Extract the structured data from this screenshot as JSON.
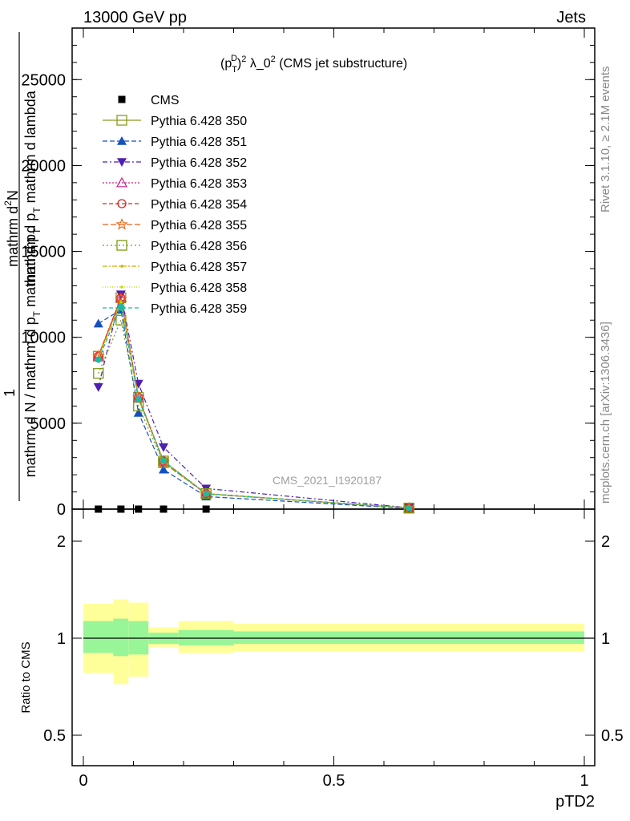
{
  "header": {
    "left": "13000 GeV pp",
    "right": "Jets"
  },
  "plot_title": {
    "main": "(p",
    "sub": "T",
    "sup": "D",
    "rest": ")",
    "exp": "2",
    "tail": " λ_0",
    "exp2": "2",
    "suffix": " (CMS jet substructure)"
  },
  "side_labels": {
    "rivet": "Rivet 3.1.10, ≥ 2.1M events",
    "mcplots": "mcplots.cern.ch [arXiv:1306.3436]"
  },
  "watermark": "CMS_2021_I1920187",
  "ylabel_main_lines": [
    "1",
    "mathrm d N / mathrm d p_T mathrm d p_T",
    "mathrm d^2N",
    "mathrm d p_T mathrm d lambda"
  ],
  "ylabel_fraction": {
    "num_top": "mathrm d",
    "num_sup": "2",
    "num_rest": "N",
    "num_den": "mathrm d p",
    "num_den_sub": "T",
    "num_den_rest": " mathrm d lambda",
    "one": "1",
    "den": "mathrm d N / mathrm d p",
    "den_sub": "T",
    "den_rest": " mathrm d p",
    "den_sub2": "T"
  },
  "ylabel_ratio": "Ratio to CMS",
  "xlabel": "pTD2",
  "colors": {
    "band_inner": "#98f598",
    "band_outer": "#ffff99"
  },
  "chart_data": {
    "type": "line",
    "xlim": [
      0,
      1
    ],
    "ylim": [
      0,
      28000
    ],
    "ratio_ylim": [
      0.4,
      2.3
    ],
    "x_ticks": [
      {
        "value": 0,
        "label": "0"
      },
      {
        "value": 0.5,
        "label": "0.5"
      },
      {
        "value": 1,
        "label": "1"
      }
    ],
    "y_ticks": [
      {
        "value": 0,
        "label": "0"
      },
      {
        "value": 5000,
        "label": "5000"
      },
      {
        "value": 10000,
        "label": "10000"
      },
      {
        "value": 15000,
        "label": "15000"
      },
      {
        "value": 20000,
        "label": "20000"
      },
      {
        "value": 25000,
        "label": "25000"
      }
    ],
    "ratio_ticks": [
      {
        "value": 0.5,
        "label": "0.5"
      },
      {
        "value": 1,
        "label": "1"
      },
      {
        "value": 2,
        "label": "2"
      }
    ],
    "x": [
      0.03,
      0.075,
      0.11,
      0.16,
      0.245,
      0.65
    ],
    "series": [
      {
        "name": "CMS",
        "color": "#000000",
        "marker": "filled-square",
        "dash": "none",
        "values": [
          0,
          0,
          0,
          0,
          0,
          0
        ]
      },
      {
        "name": "Pythia 6.428 350",
        "color": "#8a9a1e",
        "marker": "open-square",
        "dash": "solid",
        "values": [
          8900,
          12300,
          6500,
          2800,
          900,
          60
        ]
      },
      {
        "name": "Pythia 6.428 351",
        "color": "#1550c0",
        "marker": "filled-triangle-up",
        "dash": "6,3",
        "values": [
          10800,
          11600,
          5600,
          2300,
          730,
          40
        ]
      },
      {
        "name": "Pythia 6.428 352",
        "color": "#5020b0",
        "marker": "filled-triangle-down",
        "dash": "6,3,2,3",
        "values": [
          7100,
          12500,
          7300,
          3600,
          1200,
          80
        ]
      },
      {
        "name": "Pythia 6.428 353",
        "color": "#cc2080",
        "marker": "open-triangle-up",
        "dash": "2,2",
        "values": [
          8900,
          12300,
          6500,
          2800,
          900,
          60
        ]
      },
      {
        "name": "Pythia 6.428 354",
        "color": "#dd2020",
        "marker": "open-circle",
        "dash": "5,3",
        "values": [
          8900,
          12300,
          6500,
          2800,
          900,
          60
        ]
      },
      {
        "name": "Pythia 6.428 355",
        "color": "#ee6010",
        "marker": "open-star",
        "dash": "7,3",
        "values": [
          8900,
          12200,
          6500,
          2700,
          880,
          60
        ]
      },
      {
        "name": "Pythia 6.428 356",
        "color": "#7a9a10",
        "marker": "open-square",
        "dash": "2,3",
        "values": [
          7900,
          11000,
          6000,
          2700,
          900,
          60
        ]
      },
      {
        "name": "Pythia 6.428 357",
        "color": "#d0b000",
        "marker": "small-dot",
        "dash": "6,2,2,2",
        "values": [
          8800,
          12100,
          6400,
          2800,
          900,
          60
        ]
      },
      {
        "name": "Pythia 6.428 358",
        "color": "#c0d800",
        "marker": "small-dot",
        "dash": "1,2",
        "values": [
          8800,
          12000,
          6400,
          2800,
          900,
          60
        ]
      },
      {
        "name": "Pythia 6.428 359",
        "color": "#20b8a0",
        "marker": "filled-circle",
        "dash": "5,3",
        "values": [
          8700,
          11800,
          6400,
          2800,
          900,
          60
        ]
      }
    ],
    "ratio_bands": [
      {
        "x0": 0.0,
        "x1": 0.06,
        "inner": [
          0.9,
          1.13
        ],
        "outer": [
          0.78,
          1.28
        ]
      },
      {
        "x0": 0.06,
        "x1": 0.09,
        "inner": [
          0.88,
          1.15
        ],
        "outer": [
          0.72,
          1.32
        ]
      },
      {
        "x0": 0.09,
        "x1": 0.13,
        "inner": [
          0.89,
          1.13
        ],
        "outer": [
          0.76,
          1.29
        ]
      },
      {
        "x0": 0.13,
        "x1": 0.19,
        "inner": [
          0.96,
          1.04
        ],
        "outer": [
          0.94,
          1.08
        ]
      },
      {
        "x0": 0.19,
        "x1": 0.3,
        "inner": [
          0.95,
          1.06
        ],
        "outer": [
          0.9,
          1.13
        ]
      },
      {
        "x0": 0.3,
        "x1": 1.0,
        "inner": [
          0.96,
          1.05
        ],
        "outer": [
          0.91,
          1.11
        ]
      }
    ],
    "legend_position": "top-left",
    "grid": false
  }
}
